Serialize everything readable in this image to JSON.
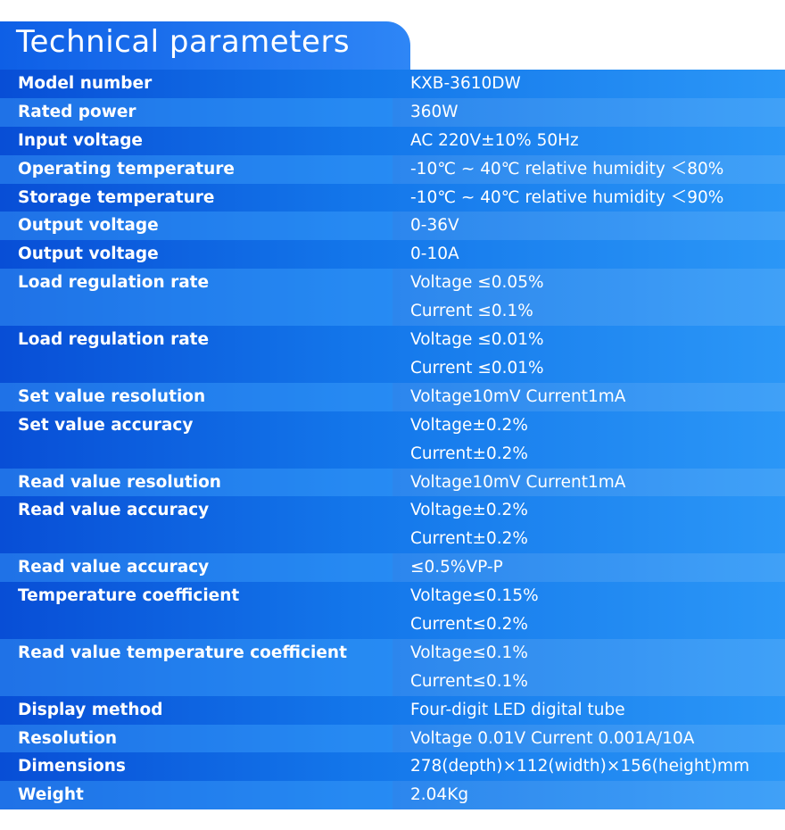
{
  "title": "Technical parameters",
  "rows": [
    {
      "label": "Model number",
      "values": [
        "KXB-3610DW"
      ]
    },
    {
      "label": "Rated power",
      "values": [
        "360W"
      ]
    },
    {
      "label": "Input voltage",
      "values": [
        "AC 220V±10% 50Hz"
      ]
    },
    {
      "label": "Operating temperature",
      "values": [
        " -10℃ ~ 40℃ relative humidity ＜80%"
      ]
    },
    {
      "label": "Storage temperature",
      "values": [
        " -10℃ ~ 40℃ relative humidity ＜90%"
      ]
    },
    {
      "label": "Output voltage",
      "values": [
        "0-36V"
      ]
    },
    {
      "label": "Output voltage",
      "values": [
        "0-10A"
      ]
    },
    {
      "label": "Load regulation rate",
      "values": [
        "Voltage ≤0.05%",
        "Current ≤0.1%"
      ]
    },
    {
      "label": "Load regulation rate",
      "values": [
        "Voltage ≤0.01%",
        "Current ≤0.01%"
      ]
    },
    {
      "label": "Set value resolution",
      "values": [
        "Voltage10mV Current1mA"
      ]
    },
    {
      "label": "Set value accuracy",
      "values": [
        "Voltage±0.2%",
        "Current±0.2%"
      ]
    },
    {
      "label": "Read value resolution",
      "values": [
        "Voltage10mV Current1mA"
      ]
    },
    {
      "label": "Read value accuracy",
      "values": [
        "Voltage±0.2%",
        "Current±0.2%"
      ]
    },
    {
      "label": "Read value accuracy",
      "values": [
        "≤0.5%VP-P"
      ]
    },
    {
      "label": "Temperature coefficient",
      "values": [
        "Voltage≤0.15%",
        "Current≤0.2%"
      ]
    },
    {
      "label": "Read value  temperature coefficient",
      "values": [
        "Voltage≤0.1%",
        "Current≤0.1%"
      ]
    },
    {
      "label": "Display method",
      "values": [
        "Four-digit LED digital tube"
      ]
    },
    {
      "label": "Resolution",
      "values": [
        "Voltage 0.01V Current 0.001A/10A"
      ]
    },
    {
      "label": "Dimensions",
      "values": [
        "278(depth)×112(width)×156(height)mm"
      ]
    },
    {
      "label": "Weight",
      "values": [
        "2.04Kg"
      ]
    }
  ]
}
